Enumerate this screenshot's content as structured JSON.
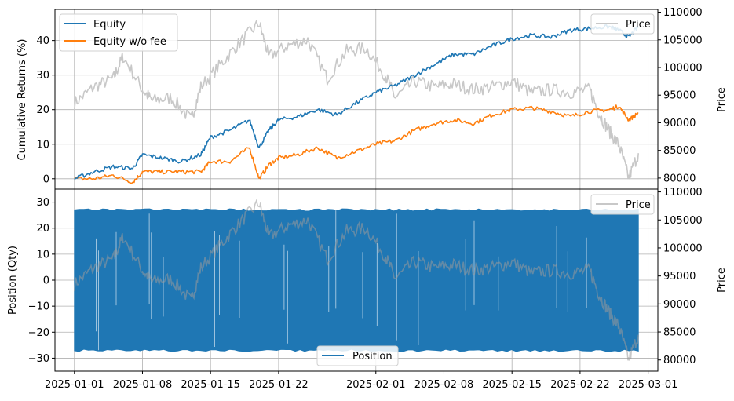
{
  "chart_data": [
    {
      "type": "line",
      "panel": "top",
      "ylabel": "Cumulative Returns (%)",
      "ylabel_right": "Price",
      "ylim": [
        -3,
        49
      ],
      "ylim_right": [
        78000,
        110500
      ],
      "xlim": [
        "2024-12-30",
        "2025-03-02"
      ],
      "yticks": [
        "0",
        "10",
        "20",
        "30",
        "40"
      ],
      "yticks_right": [
        "80000",
        "85000",
        "90000",
        "95000",
        "100000",
        "105000",
        "110000"
      ],
      "grid": true,
      "legend_placement": "upper left",
      "legend_right_placement": "upper right",
      "series": [
        {
          "name": "Equity",
          "color": "#1f77b4",
          "axis": "left",
          "x": [
            "2025-01-01",
            "2025-01-03",
            "2025-01-05",
            "2025-01-07",
            "2025-01-08",
            "2025-01-10",
            "2025-01-12",
            "2025-01-14",
            "2025-01-15",
            "2025-01-17",
            "2025-01-19",
            "2025-01-20",
            "2025-01-21",
            "2025-01-22",
            "2025-01-24",
            "2025-01-26",
            "2025-01-28",
            "2025-01-30",
            "2025-02-01",
            "2025-02-03",
            "2025-02-05",
            "2025-02-07",
            "2025-02-09",
            "2025-02-11",
            "2025-02-13",
            "2025-02-15",
            "2025-02-17",
            "2025-02-19",
            "2025-02-21",
            "2025-02-23",
            "2025-02-25",
            "2025-02-26",
            "2025-02-27",
            "2025-02-28"
          ],
          "y": [
            0,
            2,
            3.5,
            3,
            7,
            6,
            5,
            7,
            12,
            14,
            17,
            9,
            14,
            17,
            18,
            20,
            18.5,
            22,
            25,
            27,
            30,
            33,
            36,
            36,
            38.5,
            40.5,
            41.5,
            41,
            43,
            43.5,
            44,
            43,
            41,
            44
          ]
        },
        {
          "name": "Equity w/o fee",
          "color": "#ff7f0e",
          "axis": "left",
          "x": [
            "2025-01-01",
            "2025-01-03",
            "2025-01-05",
            "2025-01-07",
            "2025-01-08",
            "2025-01-10",
            "2025-01-12",
            "2025-01-14",
            "2025-01-15",
            "2025-01-17",
            "2025-01-19",
            "2025-01-20",
            "2025-01-21",
            "2025-01-22",
            "2025-01-24",
            "2025-01-26",
            "2025-01-28",
            "2025-01-30",
            "2025-02-01",
            "2025-02-03",
            "2025-02-05",
            "2025-02-07",
            "2025-02-09",
            "2025-02-11",
            "2025-02-13",
            "2025-02-15",
            "2025-02-17",
            "2025-02-19",
            "2025-02-21",
            "2025-02-23",
            "2025-02-25",
            "2025-02-26",
            "2025-02-27",
            "2025-02-28"
          ],
          "y": [
            0,
            0,
            1,
            -1,
            2,
            2,
            2,
            2,
            5,
            5,
            9,
            0,
            4,
            6,
            7,
            9,
            6,
            8,
            10,
            11,
            14,
            16,
            17,
            16,
            18.5,
            20,
            20.5,
            19.5,
            18,
            19.5,
            20,
            21,
            17,
            19
          ]
        },
        {
          "name": "Price",
          "color": "#c8c8c8",
          "axis": "right",
          "x": [
            "2025-01-01",
            "2025-01-03",
            "2025-01-05",
            "2025-01-06",
            "2025-01-08",
            "2025-01-09",
            "2025-01-11",
            "2025-01-13",
            "2025-01-14",
            "2025-01-16",
            "2025-01-18",
            "2025-01-20",
            "2025-01-21",
            "2025-01-23",
            "2025-01-25",
            "2025-01-27",
            "2025-01-29",
            "2025-01-31",
            "2025-02-02",
            "2025-02-03",
            "2025-02-05",
            "2025-02-07",
            "2025-02-09",
            "2025-02-11",
            "2025-02-13",
            "2025-02-15",
            "2025-02-17",
            "2025-02-19",
            "2025-02-21",
            "2025-02-23",
            "2025-02-24",
            "2025-02-25",
            "2025-02-26",
            "2025-02-27",
            "2025-02-28"
          ],
          "y": [
            93500,
            96500,
            98000,
            102000,
            96000,
            94000,
            94500,
            90500,
            96500,
            100500,
            104500,
            108000,
            102000,
            104000,
            105000,
            98000,
            103000,
            103500,
            98500,
            94500,
            97500,
            96500,
            97000,
            96000,
            96500,
            97500,
            95500,
            96000,
            95500,
            96000,
            91500,
            88500,
            86000,
            80000,
            84500
          ]
        }
      ]
    },
    {
      "type": "area",
      "panel": "bottom",
      "ylabel": "Position (Qty)",
      "ylabel_right": "Price",
      "ylim": [
        -35,
        35
      ],
      "ylim_right": [
        78000,
        110500
      ],
      "xlim": [
        "2024-12-30",
        "2025-03-02"
      ],
      "yticks": [
        "−30",
        "−20",
        "−10",
        "0",
        "10",
        "20",
        "30"
      ],
      "yticks_right": [
        "80000",
        "85000",
        "90000",
        "95000",
        "100000",
        "105000",
        "110000"
      ],
      "xticks": [
        "2025-01-01",
        "2025-01-08",
        "2025-01-15",
        "2025-01-22",
        "2025-02-01",
        "2025-02-08",
        "2025-02-15",
        "2025-02-22",
        "2025-03-01"
      ],
      "grid": true,
      "legend_placement": "lower center",
      "legend_right_placement": "upper right",
      "series": [
        {
          "name": "Position",
          "color": "#1f77b4",
          "axis": "left",
          "range_upper": 27,
          "range_lower": -27
        },
        {
          "name": "Price",
          "color": "#c8c8c8",
          "axis": "right"
        }
      ]
    }
  ]
}
